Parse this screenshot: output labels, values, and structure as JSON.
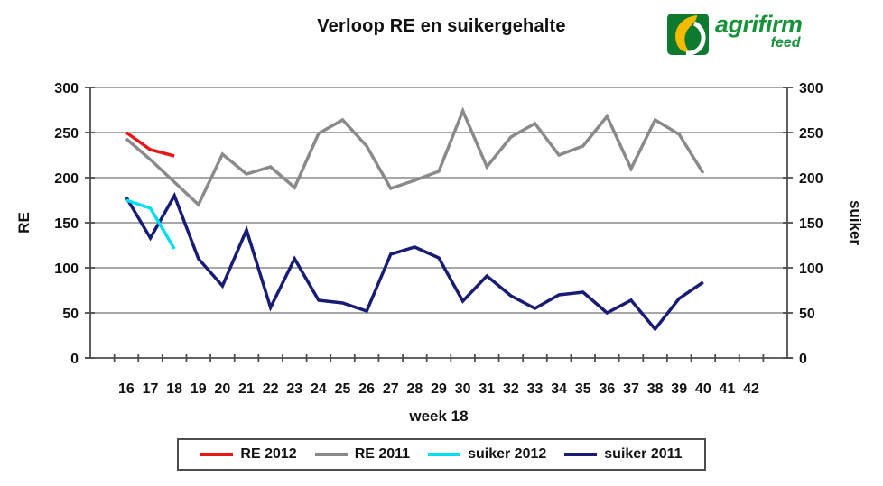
{
  "logo": {
    "brand": "agrifirm",
    "sub": "feed",
    "text_color": "#18933c",
    "icon_green": "#0d7a2f",
    "icon_yellow": "#f5bb00"
  },
  "chart_data": {
    "type": "line",
    "title": "Verloop RE en suikergehalte",
    "xlabel": "week 18",
    "ylabel_left": "RE",
    "ylabel_right": "suiker",
    "ylim": [
      0,
      300
    ],
    "ytick_step": 50,
    "grid": true,
    "legend_position": "bottom",
    "axis_color": "#4d4d4d",
    "grid_color": "#8c8c8c",
    "x_categories": [
      "16",
      "17",
      "18",
      "19",
      "20",
      "21",
      "22",
      "23",
      "24",
      "25",
      "26",
      "27",
      "28",
      "29",
      "30",
      "31",
      "32",
      "33",
      "34",
      "35",
      "36",
      "37",
      "38",
      "39",
      "40",
      "41",
      "42"
    ],
    "series": [
      {
        "name": "RE 2012",
        "color": "#e81717",
        "values": [
          250,
          231,
          224
        ]
      },
      {
        "name": "RE 2011",
        "color": "#8a8a8a",
        "values": [
          243,
          220,
          195,
          170,
          226,
          204,
          212,
          189,
          249,
          264,
          235,
          188,
          197,
          207,
          274,
          212,
          245,
          260,
          225,
          235,
          268,
          210,
          264,
          248,
          205
        ]
      },
      {
        "name": "suiker 2012",
        "color": "#00dff0",
        "values": [
          175,
          166,
          121
        ]
      },
      {
        "name": "suiker 2011",
        "color": "#181c74",
        "values": [
          178,
          133,
          180,
          110,
          80,
          142,
          56,
          110,
          64,
          61,
          52,
          115,
          123,
          111,
          63,
          91,
          69,
          55,
          70,
          73,
          50,
          64,
          32,
          66,
          84
        ]
      }
    ]
  }
}
